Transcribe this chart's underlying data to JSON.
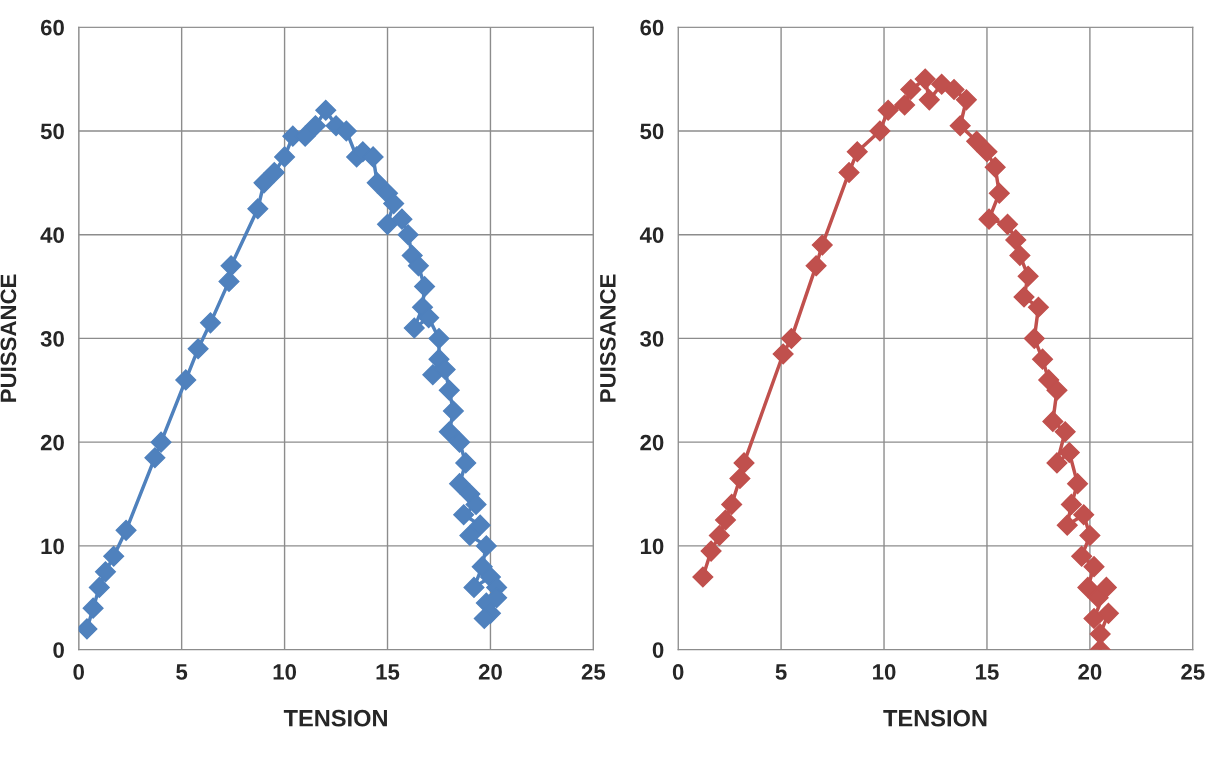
{
  "chart_data": [
    {
      "type": "line",
      "xlabel": "TENSION",
      "ylabel": "PUISSANCE",
      "xlim": [
        0,
        25
      ],
      "ylim": [
        0,
        60
      ],
      "xticks": [
        0,
        5,
        10,
        15,
        20,
        25
      ],
      "yticks": [
        0,
        10,
        20,
        30,
        40,
        50,
        60
      ],
      "grid": true,
      "marker": "diamond",
      "line_style": "solid",
      "series": [
        {
          "color": "#4f81bd",
          "x": [
            0.4,
            0.7,
            1.0,
            1.3,
            1.7,
            2.3,
            3.7,
            4.0,
            5.2,
            5.8,
            6.4,
            7.3,
            7.4,
            8.7,
            9.0,
            9.5,
            10.0,
            10.4,
            11.0,
            11.5,
            12.0,
            12.5,
            13.0,
            13.5,
            13.8,
            14.3,
            14.5,
            15.0,
            15.3,
            15.0,
            15.7,
            16.0,
            16.2,
            16.5,
            16.8,
            16.7,
            16.3,
            17.0,
            17.5,
            17.5,
            17.2,
            17.8,
            18.0,
            18.2,
            18.0,
            18.5,
            18.8,
            18.5,
            19.0,
            19.3,
            18.7,
            19.5,
            19.0,
            19.8,
            19.6,
            19.2,
            20.0,
            20.3,
            19.8,
            20.0,
            20.3,
            19.7
          ],
          "values": [
            2,
            4,
            6,
            7.5,
            9,
            11.5,
            18.5,
            20,
            26,
            29,
            31.5,
            35.5,
            37,
            42.5,
            45,
            46,
            47.5,
            49.5,
            49.5,
            50.5,
            52,
            50.5,
            50,
            47.5,
            48,
            47.5,
            45,
            44,
            43,
            41,
            41.5,
            40,
            38,
            37,
            35,
            33,
            31,
            32,
            30,
            28,
            26.5,
            27,
            25,
            23,
            21,
            20,
            18,
            16,
            15,
            14,
            13,
            12,
            11,
            10,
            8,
            6,
            7,
            6,
            4.5,
            3.5,
            5,
            3
          ]
        }
      ]
    },
    {
      "type": "line",
      "xlabel": "TENSION",
      "ylabel": "PUISSANCE",
      "xlim": [
        0,
        25
      ],
      "ylim": [
        0,
        60
      ],
      "xticks": [
        0,
        5,
        10,
        15,
        20,
        25
      ],
      "yticks": [
        0,
        10,
        20,
        30,
        40,
        50,
        60
      ],
      "grid": true,
      "marker": "diamond",
      "line_style": "solid",
      "series": [
        {
          "color": "#c0504d",
          "x": [
            1.2,
            1.6,
            2.0,
            2.3,
            2.6,
            3.0,
            3.2,
            5.1,
            5.5,
            6.7,
            7.0,
            8.3,
            8.7,
            9.8,
            10.2,
            11.0,
            11.3,
            12.0,
            12.2,
            12.8,
            13.4,
            14.0,
            13.7,
            14.5,
            15.0,
            15.4,
            15.6,
            15.1,
            16.0,
            16.4,
            16.6,
            17.0,
            16.8,
            17.5,
            17.3,
            17.7,
            18.0,
            18.4,
            18.2,
            18.8,
            18.4,
            19.0,
            19.4,
            19.1,
            18.9,
            19.7,
            20.0,
            19.6,
            20.2,
            19.9,
            20.4,
            20.8,
            20.2,
            20.9,
            20.5,
            20.5
          ],
          "values": [
            7,
            9.5,
            11,
            12.5,
            14,
            16.5,
            18,
            28.5,
            30,
            37,
            39,
            46,
            48,
            50,
            52,
            52.5,
            54,
            55,
            53,
            54.5,
            54,
            53,
            50.5,
            49,
            48,
            46.5,
            44,
            41.5,
            41,
            39.5,
            38,
            36,
            34,
            33,
            30,
            28,
            26,
            25,
            22,
            21,
            18,
            19,
            16,
            14,
            12,
            13,
            11,
            9,
            8,
            6,
            5,
            6,
            3,
            3.5,
            1.5,
            0
          ]
        }
      ]
    }
  ]
}
